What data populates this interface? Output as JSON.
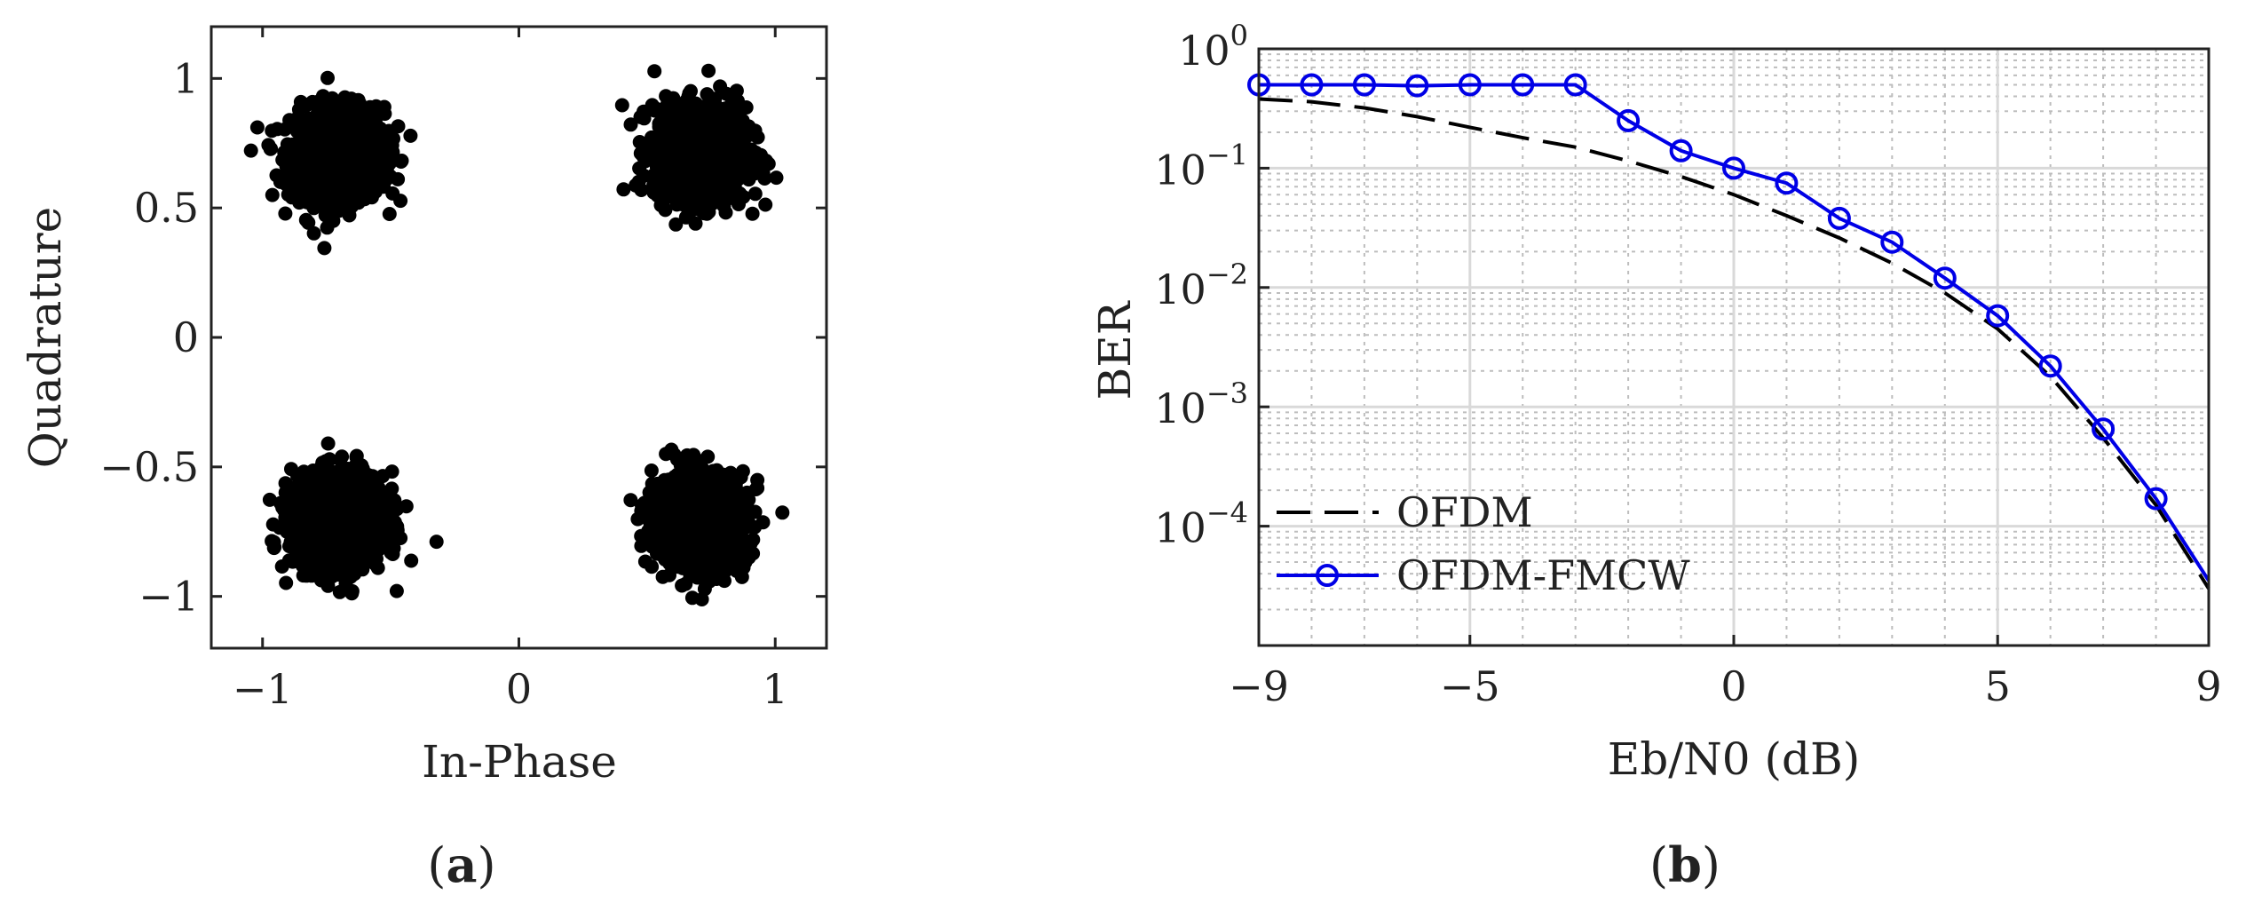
{
  "panel_labels": {
    "a": {
      "open": "(",
      "letter": "a",
      "close": ")"
    },
    "b": {
      "open": "(",
      "letter": "b",
      "close": ")"
    }
  },
  "colors": {
    "axis": "#222222",
    "grid_major": "#d9d9d9",
    "grid_minor": "#bdbdbd",
    "scatter": "#000000",
    "ofdm": "#000000",
    "ofdm_fmcw": "#0000e6"
  },
  "chart_data": [
    {
      "type": "scatter",
      "title": "",
      "xlabel": "In-Phase",
      "ylabel": "Quadrature",
      "xlim": [
        -1.2,
        1.2
      ],
      "ylim": [
        -1.2,
        1.2
      ],
      "xticks": [
        -1,
        0,
        1
      ],
      "xtick_labels": [
        "−1",
        "0",
        "1"
      ],
      "yticks": [
        1,
        0.5,
        0,
        -0.5,
        -1
      ],
      "ytick_labels": [
        "1",
        "0.5",
        "0",
        "−0.5",
        "−1"
      ],
      "grid": false,
      "series": [
        {
          "marker": "filled-circle",
          "cluster_centers": [
            [
              -0.707,
              0.707
            ],
            [
              0.707,
              0.707
            ],
            [
              -0.707,
              -0.707
            ],
            [
              0.707,
              -0.707
            ]
          ],
          "cluster_spread": 0.09,
          "points_per_cluster": 1200
        }
      ]
    },
    {
      "type": "line",
      "title": "",
      "xlabel": "Eb/N0 (dB)",
      "ylabel": "BER",
      "xlim": [
        -9,
        9
      ],
      "ylim": [
        1e-05,
        1
      ],
      "yscale": "log",
      "xticks": [
        -9,
        -5,
        0,
        5,
        9
      ],
      "xtick_labels": [
        "−9",
        "−5",
        "0",
        "5",
        "9"
      ],
      "yticks": [
        1,
        0.1,
        0.01,
        0.001,
        0.0001
      ],
      "ytick_labels": [
        {
          "base": "10",
          "exp": "0"
        },
        {
          "base": "10",
          "exp": "-1"
        },
        {
          "base": "10",
          "exp": "-2"
        },
        {
          "base": "10",
          "exp": "-3"
        },
        {
          "base": "10",
          "exp": "-4"
        }
      ],
      "grid": true,
      "legend_position": "bottom-left",
      "series": [
        {
          "name": "OFDM",
          "style": "dashed",
          "marker": "none",
          "x": [
            -9,
            -8,
            -7,
            -6,
            -5,
            -4,
            -3,
            -2,
            -1,
            0,
            1,
            2,
            3,
            4,
            5,
            6,
            7,
            8,
            9
          ],
          "y": [
            0.38,
            0.36,
            0.32,
            0.27,
            0.22,
            0.18,
            0.15,
            0.115,
            0.085,
            0.06,
            0.04,
            0.026,
            0.016,
            0.009,
            0.0045,
            0.0018,
            0.00055,
            0.00015,
            3e-05
          ]
        },
        {
          "name": "OFDM-FMCW",
          "style": "solid",
          "marker": "open-circle",
          "x": [
            -9,
            -8,
            -7,
            -6,
            -5,
            -4,
            -3,
            -2,
            -1,
            0,
            1,
            2,
            3,
            4,
            5,
            6,
            7,
            8,
            9
          ],
          "y": [
            0.5,
            0.5,
            0.5,
            0.49,
            0.5,
            0.5,
            0.5,
            0.25,
            0.14,
            0.1,
            0.075,
            0.038,
            0.024,
            0.012,
            0.0058,
            0.0022,
            0.00065,
            0.00017,
            3.5e-05
          ],
          "marker_x": [
            -9,
            -8,
            -7,
            -6,
            -5,
            -4,
            -3,
            -2,
            -1,
            0,
            1,
            2,
            3,
            4,
            5,
            6,
            7,
            8
          ]
        }
      ]
    }
  ]
}
